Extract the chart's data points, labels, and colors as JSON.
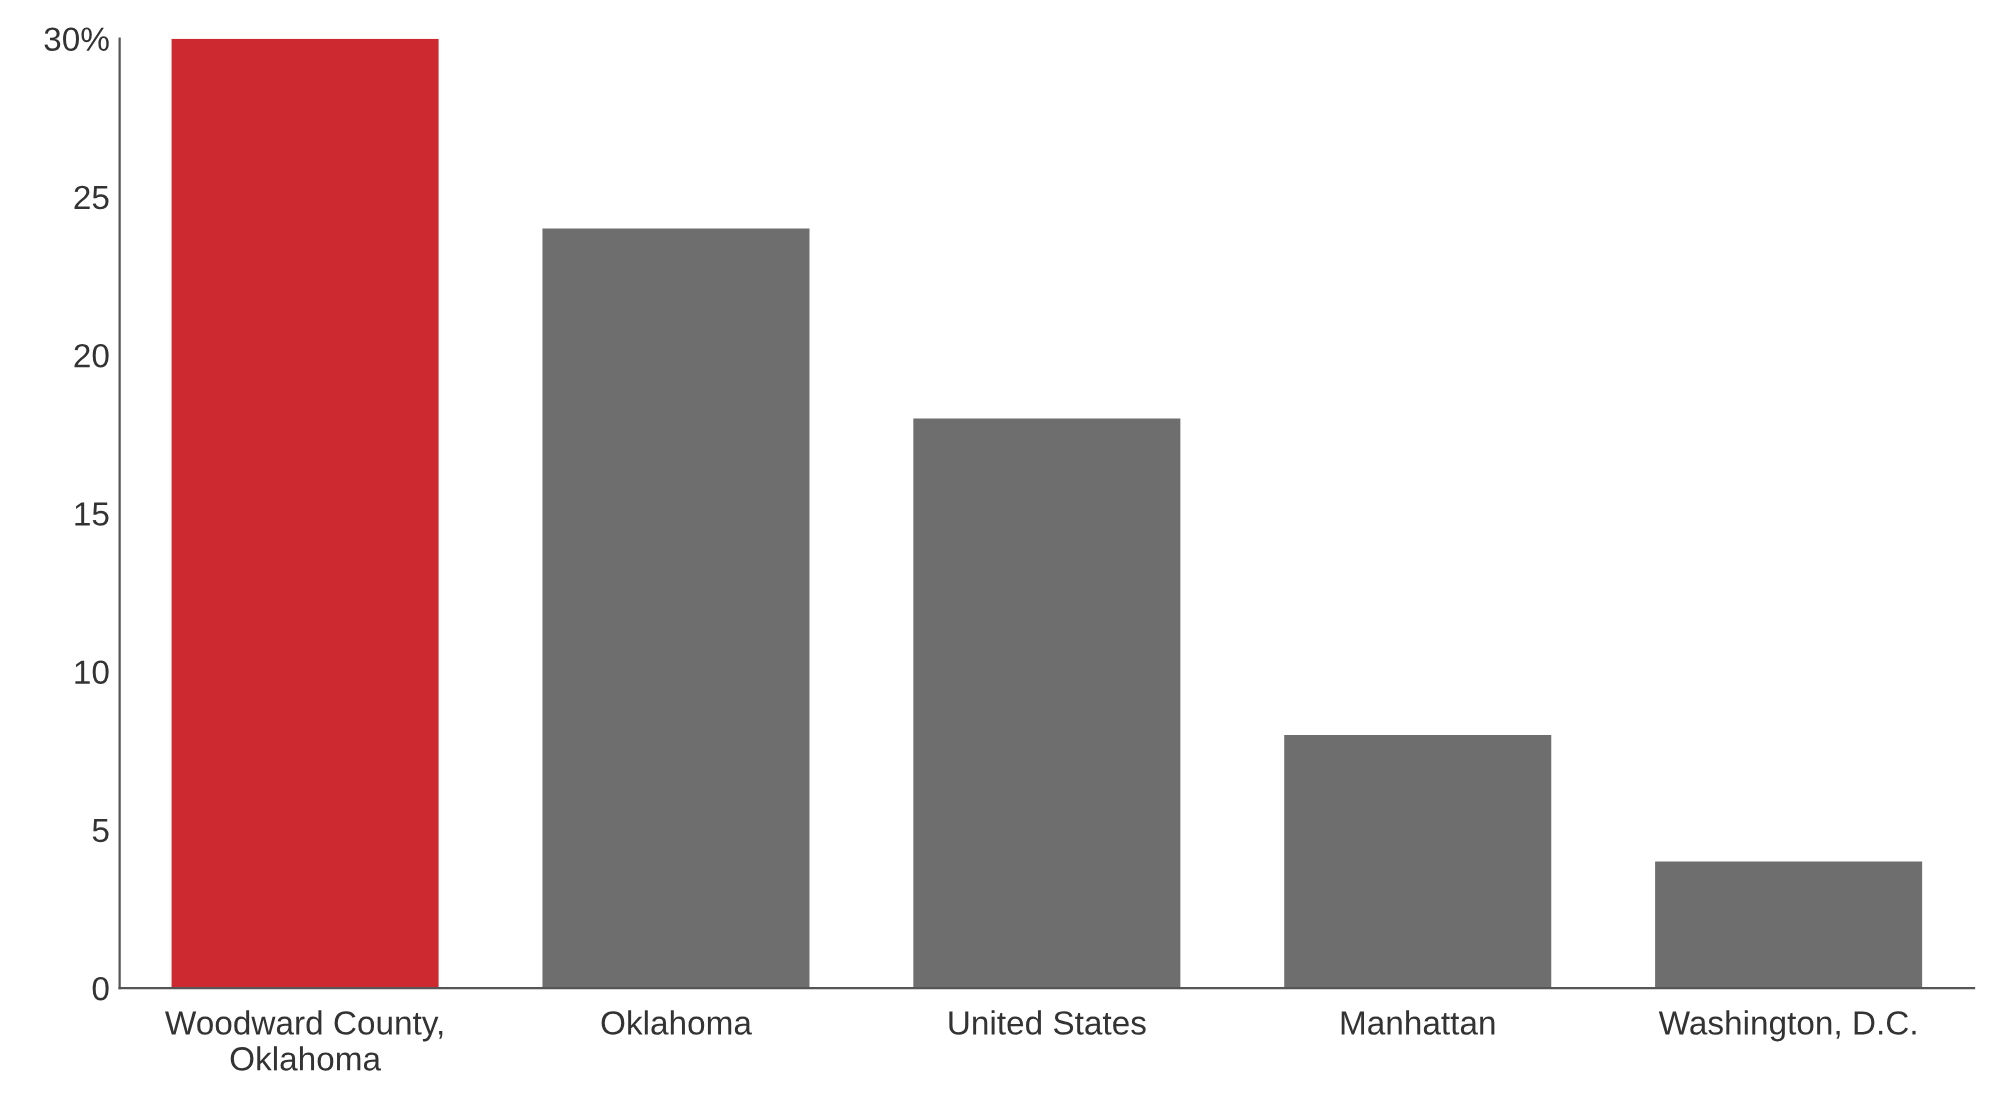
{
  "chart_data": {
    "type": "bar",
    "categories": [
      "Woodward County,\nOklahoma",
      "Oklahoma",
      "United States",
      "Manhattan",
      "Washington, D.C."
    ],
    "values": [
      30,
      24,
      18,
      8,
      4
    ],
    "colors": [
      "#cc2a30",
      "#6e6e6e",
      "#6e6e6e",
      "#6e6e6e",
      "#6e6e6e"
    ],
    "ylim": [
      0,
      30
    ],
    "yticks": [
      0,
      5,
      10,
      15,
      20,
      {
        "value": 30,
        "label": "30%"
      },
      25
    ],
    "grid": false,
    "legend": false
  }
}
